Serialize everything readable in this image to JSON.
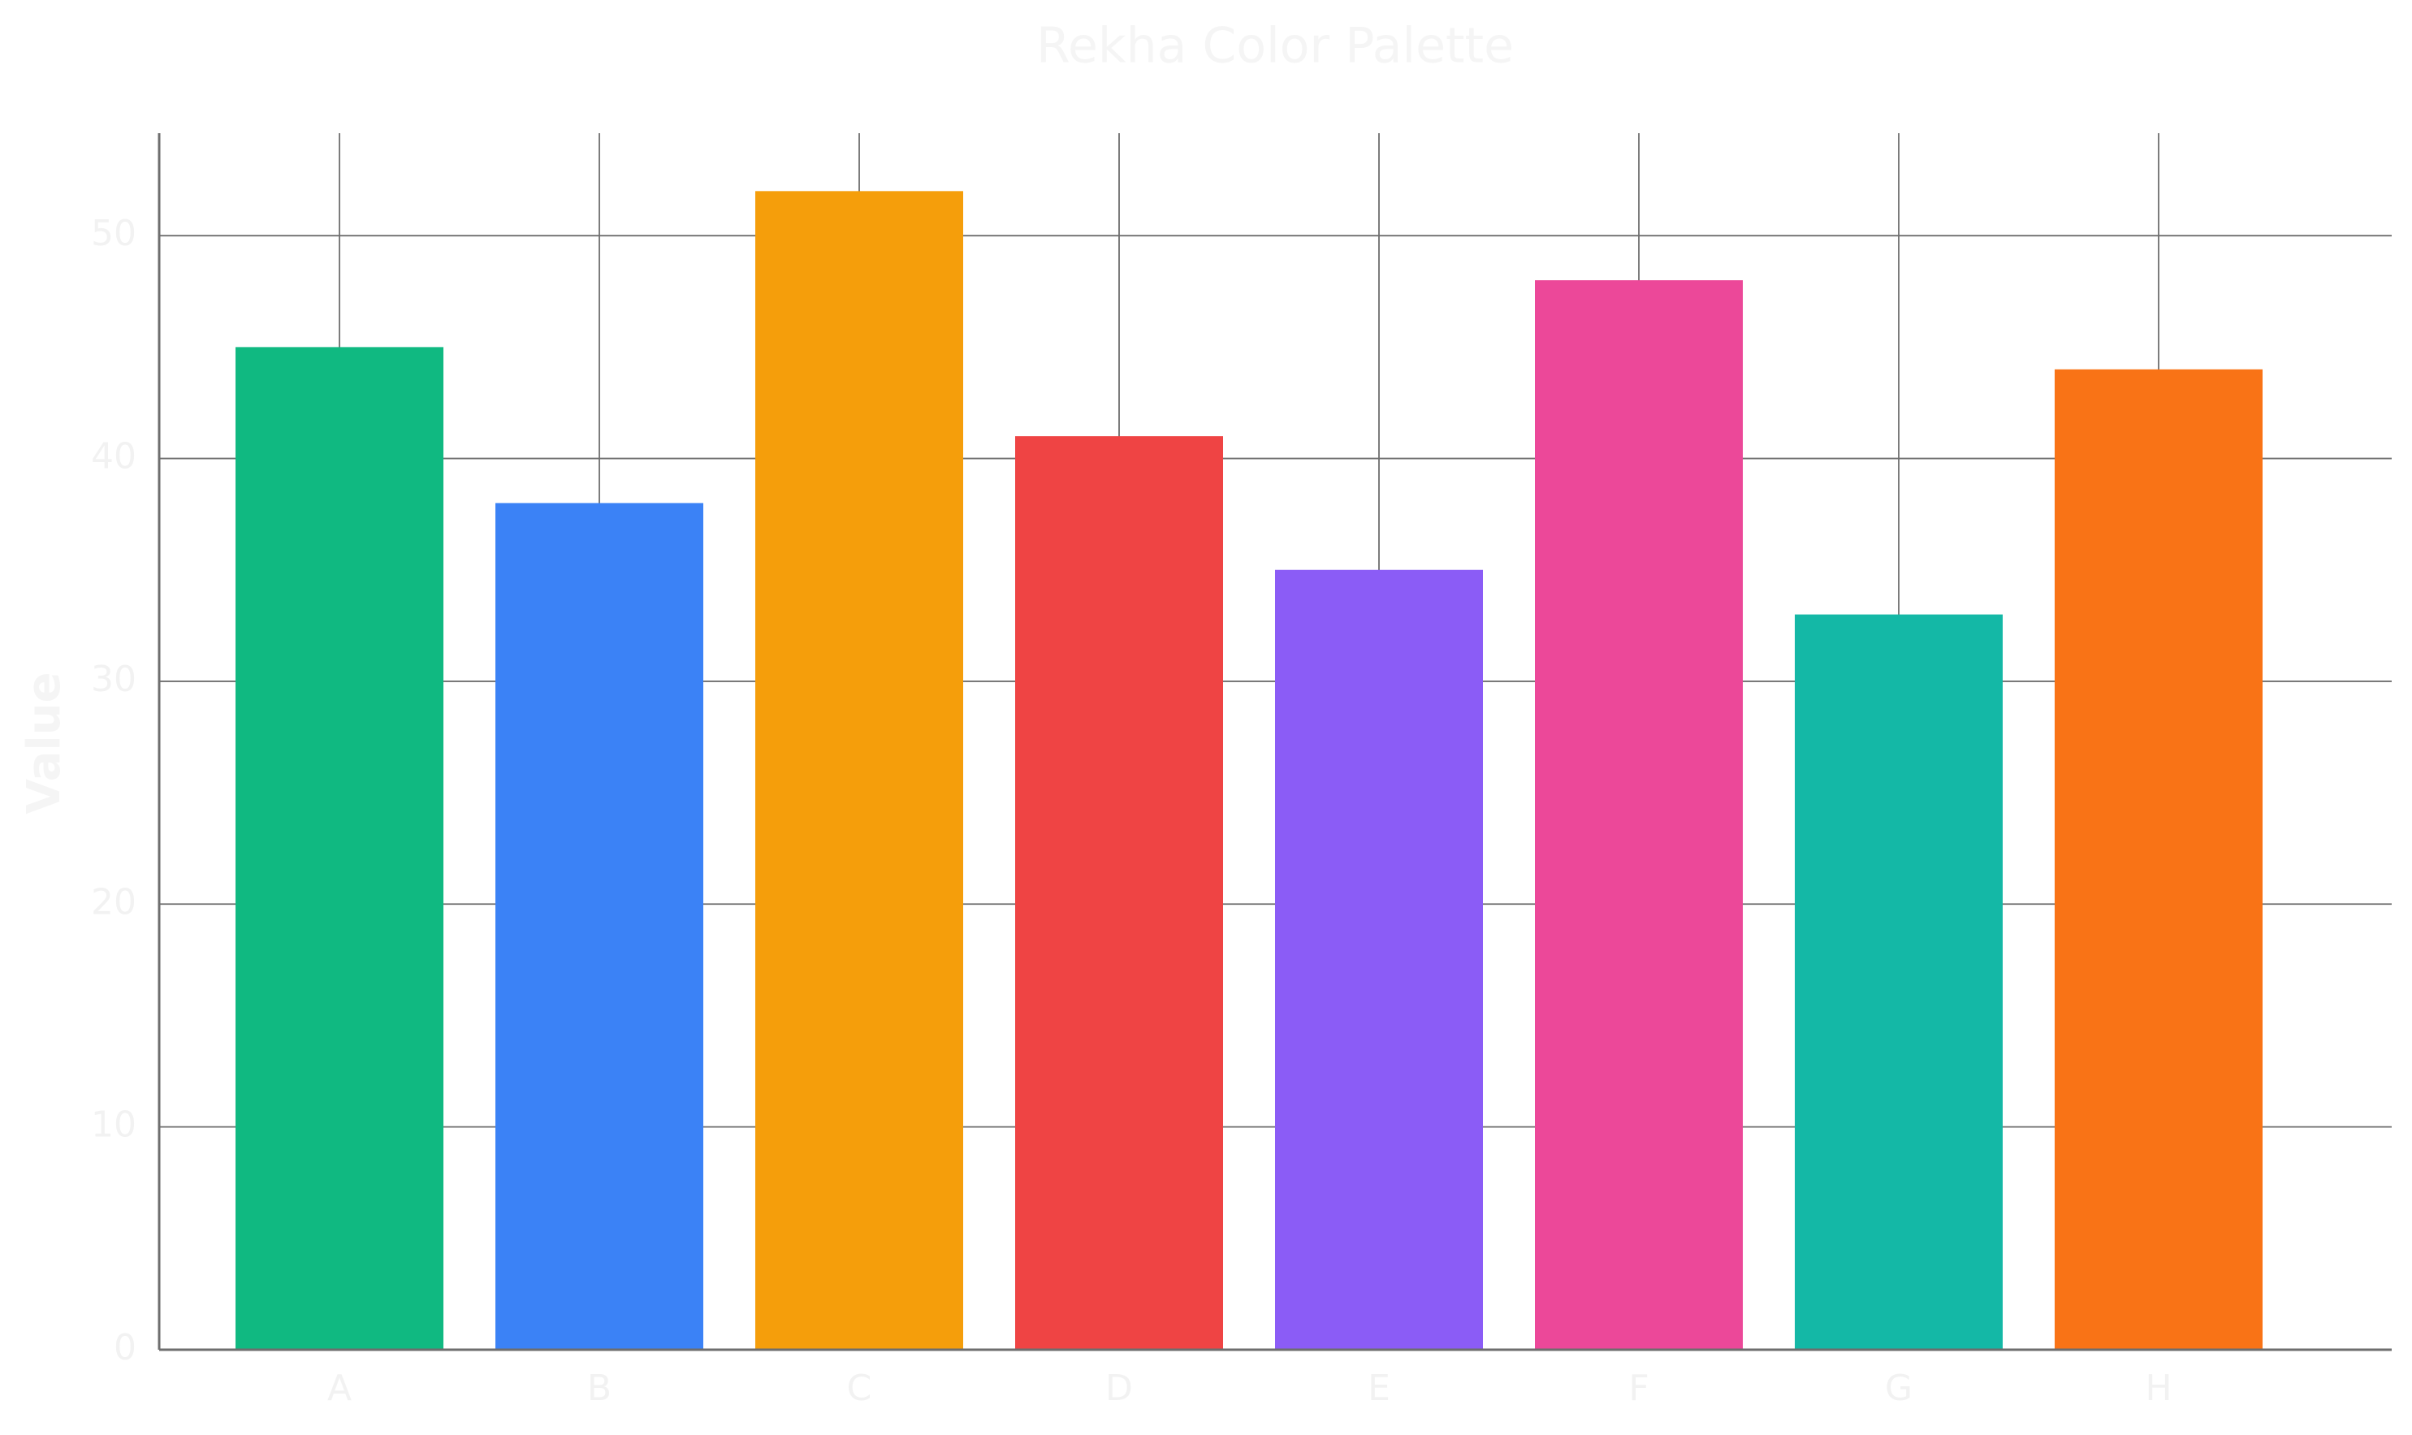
{
  "chart_data": {
    "type": "bar",
    "title": "Rekha Color Palette",
    "xlabel": "",
    "ylabel": "Value",
    "categories": [
      "A",
      "B",
      "C",
      "D",
      "E",
      "F",
      "G",
      "H"
    ],
    "values": [
      45,
      38,
      52,
      41,
      35,
      48,
      33,
      44
    ],
    "colors": [
      "#10b981",
      "#3b82f6",
      "#f59e0b",
      "#ef4444",
      "#8b5cf6",
      "#ec4899",
      "#14b8a6",
      "#f97316"
    ],
    "ylim": [
      0,
      54.6
    ],
    "yticks": [
      0,
      10,
      20,
      30,
      40,
      50
    ],
    "grid": true,
    "legend": "none"
  }
}
